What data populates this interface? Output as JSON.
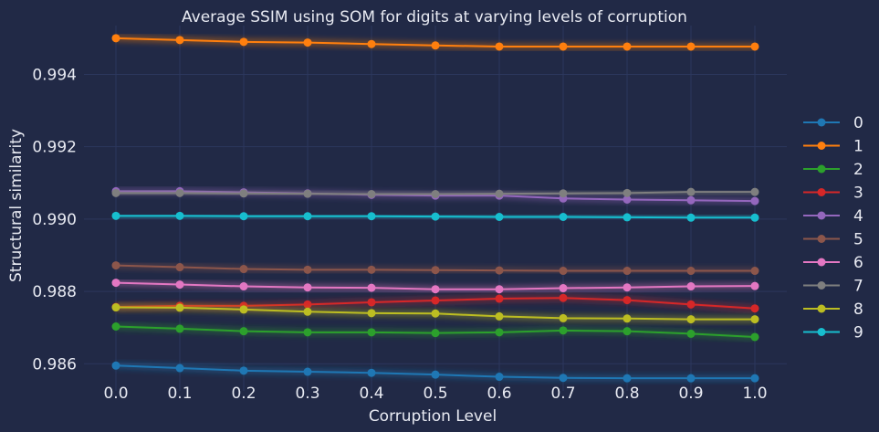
{
  "chart_data": {
    "type": "line",
    "title": "Average SSIM using SOM for digits at varying levels of corruption",
    "xlabel": "Corruption Level",
    "ylabel": "Structural similarity",
    "xlim": [
      -0.05,
      1.05
    ],
    "ylim": [
      0.98525,
      0.99535
    ],
    "x": [
      0.0,
      0.1,
      0.2,
      0.3,
      0.4,
      0.5,
      0.6,
      0.7,
      0.8,
      0.9,
      1.0
    ],
    "xticks": [
      "0.0",
      "0.1",
      "0.2",
      "0.3",
      "0.4",
      "0.5",
      "0.6",
      "0.7",
      "0.8",
      "0.9",
      "1.0"
    ],
    "yticks": [
      {
        "label": "0.986",
        "value": 0.986
      },
      {
        "label": "0.988",
        "value": 0.988
      },
      {
        "label": "0.990",
        "value": 0.99
      },
      {
        "label": "0.992",
        "value": 0.992
      },
      {
        "label": "0.994",
        "value": 0.994
      }
    ],
    "grid": true,
    "legend_position": "right",
    "series": [
      {
        "name": "0",
        "color": "#1f77b4",
        "values": [
          0.98595,
          0.98588,
          0.98581,
          0.98578,
          0.98575,
          0.9857,
          0.98564,
          0.98561,
          0.9856,
          0.9856,
          0.9856
        ]
      },
      {
        "name": "1",
        "color": "#ff7f0e",
        "values": [
          0.995,
          0.99495,
          0.9949,
          0.99488,
          0.99484,
          0.9948,
          0.99477,
          0.99477,
          0.99477,
          0.99477,
          0.99477
        ]
      },
      {
        "name": "2",
        "color": "#2ca02c",
        "values": [
          0.98703,
          0.98697,
          0.9869,
          0.98687,
          0.98687,
          0.98685,
          0.98687,
          0.98692,
          0.9869,
          0.98683,
          0.98674
        ]
      },
      {
        "name": "3",
        "color": "#d62728",
        "values": [
          0.98757,
          0.9876,
          0.9876,
          0.98764,
          0.9877,
          0.98775,
          0.9878,
          0.98782,
          0.98776,
          0.98764,
          0.98753
        ]
      },
      {
        "name": "4",
        "color": "#9467bd",
        "values": [
          0.99077,
          0.99077,
          0.99074,
          0.99071,
          0.99067,
          0.99065,
          0.99065,
          0.99057,
          0.99054,
          0.99052,
          0.9905
        ]
      },
      {
        "name": "5",
        "color": "#8c564b",
        "values": [
          0.98872,
          0.98867,
          0.98862,
          0.9886,
          0.9886,
          0.98859,
          0.98858,
          0.98857,
          0.98857,
          0.98857,
          0.98857
        ]
      },
      {
        "name": "6",
        "color": "#e377c2",
        "values": [
          0.98824,
          0.98819,
          0.98814,
          0.98811,
          0.9881,
          0.98806,
          0.98806,
          0.98809,
          0.98811,
          0.98814,
          0.98815
        ]
      },
      {
        "name": "7",
        "color": "#7f7f7f",
        "values": [
          0.99072,
          0.99072,
          0.99071,
          0.9907,
          0.99069,
          0.99069,
          0.9907,
          0.99071,
          0.99072,
          0.99075,
          0.99075
        ]
      },
      {
        "name": "8",
        "color": "#bcbd22",
        "values": [
          0.98756,
          0.98755,
          0.9875,
          0.98744,
          0.9874,
          0.98739,
          0.98731,
          0.98726,
          0.98725,
          0.98723,
          0.98723
        ]
      },
      {
        "name": "9",
        "color": "#17becf",
        "values": [
          0.99009,
          0.99009,
          0.99008,
          0.99008,
          0.99008,
          0.99007,
          0.99006,
          0.99006,
          0.99005,
          0.99004,
          0.99004
        ]
      }
    ]
  }
}
